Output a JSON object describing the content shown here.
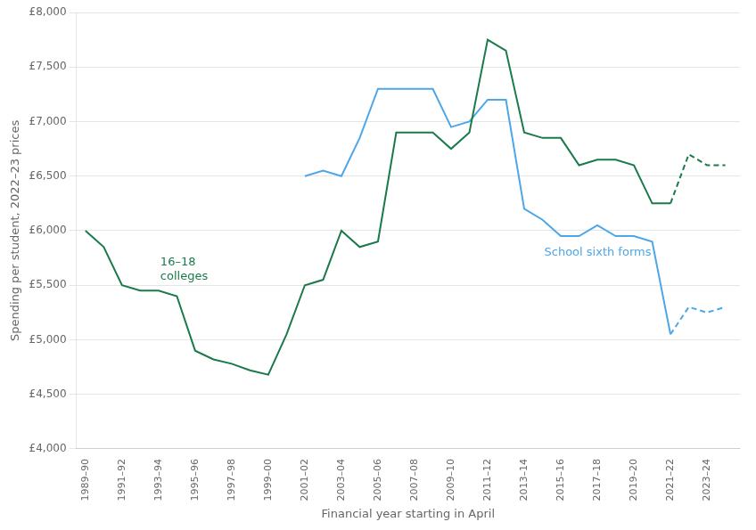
{
  "chart_data": {
    "type": "line",
    "xlabel": "Financial year starting in April",
    "ylabel": "Spending per student, 2022–23 prices",
    "x": [
      1989,
      1990,
      1991,
      1992,
      1993,
      1994,
      1995,
      1996,
      1997,
      1998,
      1999,
      2000,
      2001,
      2002,
      2003,
      2004,
      2005,
      2006,
      2007,
      2008,
      2009,
      2010,
      2011,
      2012,
      2013,
      2014,
      2015,
      2016,
      2017,
      2018,
      2019,
      2020,
      2021,
      2022,
      2023,
      2024
    ],
    "series": [
      {
        "name": "16–18\ncolleges",
        "color": "#1a7a4a",
        "line_style": "solid",
        "values": [
          6000,
          5850,
          5500,
          5450,
          5450,
          5400,
          4900,
          4820,
          4780,
          4720,
          4680,
          5050,
          5500,
          5550,
          6000,
          5850,
          5900,
          6900,
          6900,
          6900,
          6750,
          6900,
          7750,
          7650,
          6900,
          6850,
          6850,
          6600,
          6650,
          6650,
          6600,
          6250,
          6250,
          null,
          null,
          null
        ]
      },
      {
        "name": "16–18\ncolleges",
        "color": "#1a7a4a",
        "line_style": "dashed",
        "values": [
          null,
          null,
          null,
          null,
          null,
          null,
          null,
          null,
          null,
          null,
          null,
          null,
          null,
          null,
          null,
          null,
          null,
          null,
          null,
          null,
          null,
          null,
          null,
          null,
          null,
          null,
          null,
          null,
          null,
          null,
          null,
          null,
          6250,
          6700,
          6600,
          6600
        ]
      },
      {
        "name": "School sixth forms",
        "color": "#4da6e8",
        "line_style": "solid",
        "values": [
          null,
          null,
          null,
          null,
          null,
          null,
          null,
          null,
          null,
          null,
          null,
          null,
          6500,
          6550,
          6500,
          6850,
          7300,
          7300,
          7300,
          7300,
          6950,
          7000,
          7200,
          7200,
          6200,
          6100,
          5950,
          5950,
          6050,
          5950,
          5950,
          5900,
          5050,
          null,
          null,
          null
        ]
      },
      {
        "name": "School sixth forms",
        "color": "#4da6e8",
        "line_style": "dashed",
        "values": [
          null,
          null,
          null,
          null,
          null,
          null,
          null,
          null,
          null,
          null,
          null,
          null,
          null,
          null,
          null,
          null,
          null,
          null,
          null,
          null,
          null,
          null,
          null,
          null,
          null,
          null,
          null,
          null,
          null,
          null,
          null,
          null,
          5050,
          5300,
          5250,
          5300
        ]
      }
    ],
    "xlim": [
      1988.5,
      2024.8
    ],
    "xticks": [
      {
        "value": 1989,
        "label": "1989–90"
      },
      {
        "value": 1991,
        "label": "1991–92"
      },
      {
        "value": 1993,
        "label": "1993–94"
      },
      {
        "value": 1995,
        "label": "1995–96"
      },
      {
        "value": 1997,
        "label": "1997–98"
      },
      {
        "value": 1999,
        "label": "1999–00"
      },
      {
        "value": 2001,
        "label": "2001–02"
      },
      {
        "value": 2003,
        "label": "2003–04"
      },
      {
        "value": 2005,
        "label": "2005–06"
      },
      {
        "value": 2007,
        "label": "2007–08"
      },
      {
        "value": 2009,
        "label": "2009–10"
      },
      {
        "value": 2011,
        "label": "2011–12"
      },
      {
        "value": 2013,
        "label": "2013–14"
      },
      {
        "value": 2015,
        "label": "2015–16"
      },
      {
        "value": 2017,
        "label": "2017–18"
      },
      {
        "value": 2019,
        "label": "2019–20"
      },
      {
        "value": 2021,
        "label": "2021–22"
      },
      {
        "value": 2023,
        "label": "2023–24"
      }
    ],
    "ylim": [
      4000,
      8000
    ],
    "yticks": [
      {
        "value": 4000,
        "label": "£4,000"
      },
      {
        "value": 4500,
        "label": "£4,500"
      },
      {
        "value": 5000,
        "label": "£5,000"
      },
      {
        "value": 5500,
        "label": "£5,500"
      },
      {
        "value": 6000,
        "label": "£6,000"
      },
      {
        "value": 6500,
        "label": "£6,500"
      },
      {
        "value": 7000,
        "label": "£7,000"
      },
      {
        "value": 7500,
        "label": "£7,500"
      },
      {
        "value": 8000,
        "label": "£8,000"
      }
    ],
    "grid": true
  }
}
